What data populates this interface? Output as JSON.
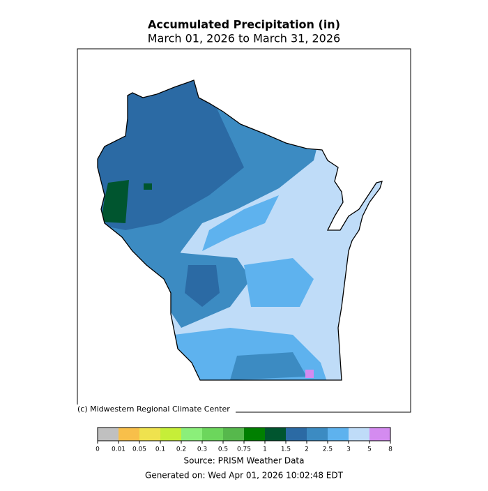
{
  "header": {
    "title": "Accumulated Precipitation (in)",
    "subtitle": "March 01, 2026 to March 31, 2026"
  },
  "map": {
    "credit": "(c) Midwestern Regional Climate Center"
  },
  "colorbar": {
    "ticks": [
      0,
      0.01,
      0.05,
      0.1,
      0.2,
      0.3,
      0.5,
      0.75,
      1,
      1.5,
      2,
      2.5,
      3,
      5,
      8
    ],
    "colors": [
      "#c0c0c0",
      "#f8bf4a",
      "#efe24e",
      "#c6ee38",
      "#8bef7a",
      "#6cd65c",
      "#56b84c",
      "#007f00",
      "#00552f",
      "#2b6aa4",
      "#3c8bc2",
      "#5eb2ee",
      "#bfdcf8",
      "#d48bf0"
    ]
  },
  "footer": {
    "source": "Source: PRISM Weather Data",
    "generated": "Generated on: Wed Apr 01, 2026 10:02:48 EDT"
  }
}
